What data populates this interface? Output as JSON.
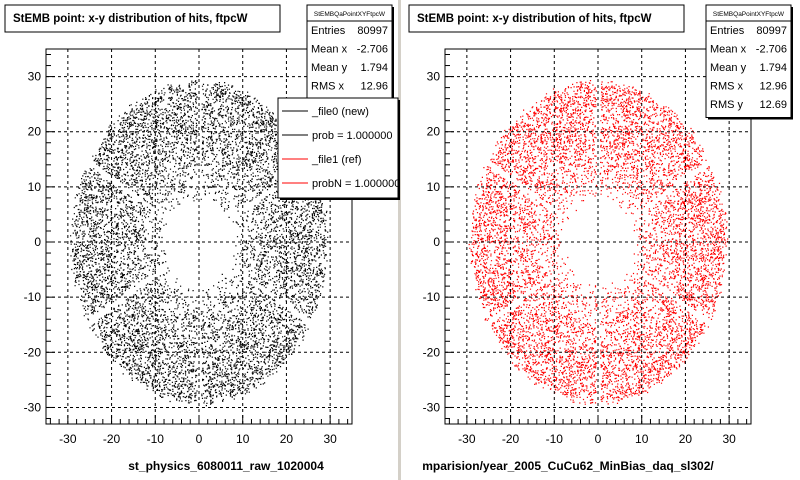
{
  "chart_data": [
    {
      "type": "scatter",
      "title": "StEMB point: x-y distribution of hits, ftpcW",
      "xlabel": "st_physics_6080011_raw_1020004",
      "ylabel": "",
      "xlim": [
        -35,
        35
      ],
      "ylim": [
        -33,
        35
      ],
      "xticks": [
        -30,
        -20,
        -10,
        0,
        10,
        20,
        30
      ],
      "yticks": [
        -30,
        -20,
        -10,
        0,
        10,
        20,
        30
      ],
      "grid": true,
      "marker_color": "#000000",
      "distribution": {
        "shape": "ring",
        "inner_radius": 7.5,
        "outer_radius": 29,
        "sector_gaps_deg": [
          30,
          90,
          150,
          210,
          270,
          330
        ],
        "center": [
          0,
          0
        ]
      },
      "stats": {
        "header": "StEMBQaPointXYFtpcW",
        "rows": [
          {
            "label": "Entries",
            "value": "80997"
          },
          {
            "label": "Mean x",
            "value": "-2.706"
          },
          {
            "label": "Mean y",
            "value": "1.794"
          },
          {
            "label": "RMS x",
            "value": "12.96"
          }
        ]
      },
      "legend": {
        "placement": "top-right",
        "entries": [
          {
            "label": "_file0 (new)",
            "color": "#000000"
          },
          {
            "label": "prob = 1.000000",
            "color": "#000000"
          },
          {
            "label": "_file1 (ref)",
            "color": "#ff0000"
          },
          {
            "label": "probN = 1.000000",
            "color": "#ff0000"
          }
        ]
      }
    },
    {
      "type": "scatter",
      "title": "StEMB point: x-y distribution of hits, ftpcW",
      "xlabel": "mparision/year_2005_CuCu62_MinBias_daq_sl302/",
      "ylabel": "",
      "xlim": [
        -35,
        35
      ],
      "ylim": [
        -33,
        35
      ],
      "xticks": [
        -30,
        -20,
        -10,
        0,
        10,
        20,
        30
      ],
      "yticks": [
        -30,
        -20,
        -10,
        0,
        10,
        20,
        30
      ],
      "grid": true,
      "marker_color": "#ff0000",
      "distribution": {
        "shape": "ring",
        "inner_radius": 7.5,
        "outer_radius": 29,
        "sector_gaps_deg": [
          30,
          90,
          150,
          210,
          270,
          330
        ],
        "center": [
          0,
          0
        ]
      },
      "stats": {
        "header": "StEMBQaPointXYFtpcW",
        "rows": [
          {
            "label": "Entries",
            "value": "80997"
          },
          {
            "label": "Mean x",
            "value": "-2.706"
          },
          {
            "label": "Mean y",
            "value": "1.794"
          },
          {
            "label": "RMS x",
            "value": "12.96"
          },
          {
            "label": "RMS y",
            "value": "12.69"
          }
        ]
      }
    }
  ]
}
